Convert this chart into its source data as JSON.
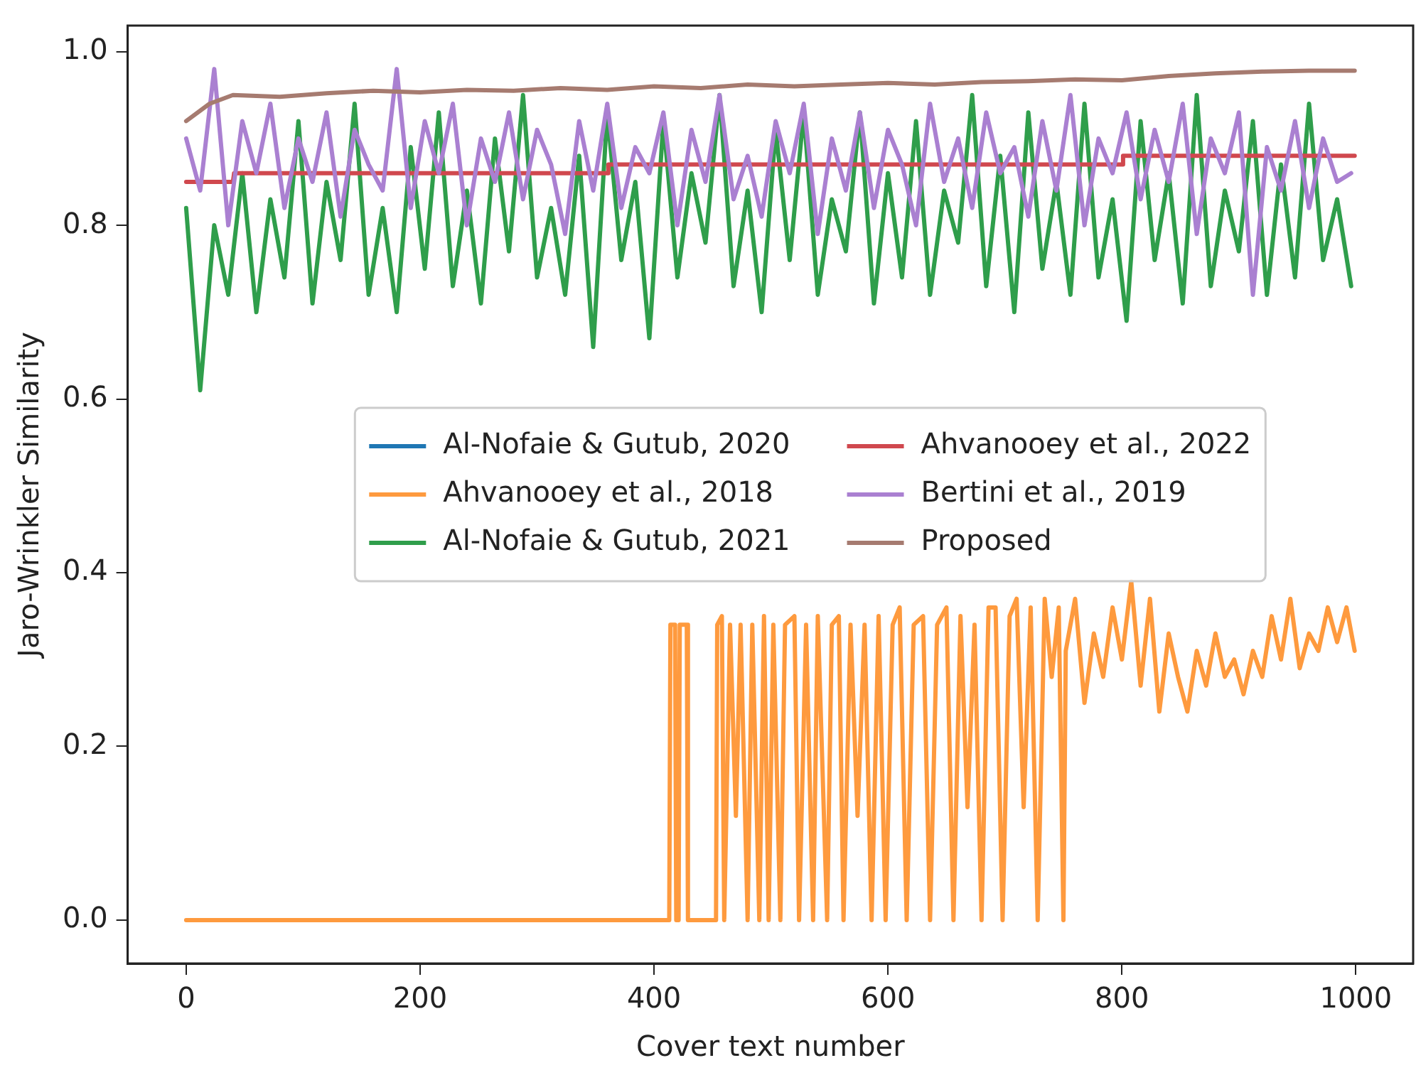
{
  "chart_data": {
    "type": "line",
    "xlabel": "Cover text number",
    "ylabel": "Jaro-Wrinkler Similarity",
    "xlim": [
      -50,
      1049
    ],
    "ylim": [
      -0.05,
      1.03
    ],
    "xticks": [
      0,
      200,
      400,
      600,
      800,
      1000
    ],
    "yticks": [
      {
        "value": 0,
        "label": "0.0"
      },
      {
        "value": 0.2,
        "label": "0.2"
      },
      {
        "value": 0.4,
        "label": "0.4"
      },
      {
        "value": 0.6,
        "label": "0.6"
      },
      {
        "value": 0.8,
        "label": "0.8"
      },
      {
        "value": 1,
        "label": "1.0"
      }
    ],
    "grid": false,
    "legend": "center",
    "marker": "none",
    "line_style": "solid",
    "series": [
      {
        "name": "Al-Nofaie & Gutub, 2020",
        "color": "#1f77b4"
      },
      {
        "name": "Ahvanooey et al., 2018",
        "color": "#fe9a3e",
        "x": [
          0,
          413,
          414,
          418,
          419,
          421,
          422,
          428,
          429,
          453,
          454,
          458,
          460,
          465,
          470,
          474,
          480,
          484,
          490,
          494,
          498,
          502,
          508,
          512,
          520,
          524,
          530,
          536,
          540,
          548,
          552,
          558,
          562,
          568,
          574,
          580,
          586,
          592,
          598,
          604,
          610,
          616,
          622,
          630,
          636,
          642,
          650,
          656,
          662,
          668,
          674,
          680,
          686,
          692,
          698,
          704,
          710,
          716,
          722,
          728,
          734,
          740,
          746,
          750,
          752,
          760,
          768,
          776,
          784,
          792,
          800,
          808,
          816,
          824,
          832,
          840,
          848,
          856,
          864,
          872,
          880,
          888,
          896,
          904,
          912,
          920,
          928,
          936,
          944,
          952,
          960,
          968,
          976,
          984,
          992,
          999
        ],
        "values": [
          0,
          0,
          0.34,
          0.34,
          0,
          0,
          0.34,
          0.34,
          0,
          0,
          0.34,
          0.35,
          0,
          0.34,
          0.12,
          0.34,
          0,
          0.34,
          0,
          0.35,
          0,
          0.34,
          0,
          0.34,
          0.35,
          0,
          0.34,
          0,
          0.35,
          0,
          0.34,
          0.35,
          0,
          0.34,
          0.12,
          0.34,
          0,
          0.35,
          0,
          0.34,
          0.36,
          0,
          0.34,
          0.35,
          0,
          0.34,
          0.36,
          0,
          0.35,
          0.13,
          0.34,
          0,
          0.36,
          0.36,
          0,
          0.35,
          0.37,
          0.13,
          0.36,
          0,
          0.37,
          0.28,
          0.36,
          0,
          0.31,
          0.37,
          0.25,
          0.33,
          0.28,
          0.36,
          0.3,
          0.39,
          0.27,
          0.37,
          0.24,
          0.33,
          0.28,
          0.24,
          0.31,
          0.27,
          0.33,
          0.28,
          0.3,
          0.26,
          0.31,
          0.28,
          0.35,
          0.3,
          0.37,
          0.29,
          0.33,
          0.31,
          0.36,
          0.32,
          0.36,
          0.31
        ]
      },
      {
        "name": "Al-Nofaie & Gutub, 2021",
        "color": "#2f9e4b",
        "x": [
          0,
          12,
          24,
          36,
          48,
          60,
          72,
          84,
          96,
          108,
          120,
          132,
          144,
          156,
          168,
          180,
          192,
          204,
          216,
          228,
          240,
          252,
          264,
          276,
          288,
          300,
          312,
          324,
          336,
          348,
          360,
          372,
          384,
          396,
          408,
          420,
          432,
          444,
          456,
          468,
          480,
          492,
          504,
          516,
          528,
          540,
          552,
          564,
          576,
          588,
          600,
          612,
          624,
          636,
          648,
          660,
          672,
          684,
          696,
          708,
          720,
          732,
          744,
          756,
          768,
          780,
          792,
          804,
          816,
          828,
          840,
          852,
          864,
          876,
          888,
          900,
          912,
          924,
          936,
          948,
          960,
          972,
          984,
          996
        ],
        "values": [
          0.82,
          0.61,
          0.8,
          0.72,
          0.86,
          0.7,
          0.83,
          0.74,
          0.92,
          0.71,
          0.85,
          0.76,
          0.94,
          0.72,
          0.82,
          0.7,
          0.89,
          0.75,
          0.93,
          0.73,
          0.84,
          0.71,
          0.9,
          0.77,
          0.95,
          0.74,
          0.82,
          0.72,
          0.88,
          0.66,
          0.93,
          0.76,
          0.85,
          0.67,
          0.92,
          0.74,
          0.86,
          0.78,
          0.95,
          0.73,
          0.84,
          0.7,
          0.91,
          0.76,
          0.93,
          0.72,
          0.83,
          0.77,
          0.93,
          0.71,
          0.86,
          0.74,
          0.92,
          0.72,
          0.84,
          0.78,
          0.95,
          0.73,
          0.88,
          0.7,
          0.93,
          0.75,
          0.85,
          0.72,
          0.94,
          0.74,
          0.83,
          0.69,
          0.92,
          0.76,
          0.86,
          0.71,
          0.95,
          0.73,
          0.84,
          0.77,
          0.92,
          0.72,
          0.87,
          0.74,
          0.94,
          0.76,
          0.83,
          0.73
        ]
      },
      {
        "name": "Ahvanooey et al., 2022",
        "color": "#d0484e",
        "x": [
          0,
          40,
          41,
          360,
          361,
          800,
          801,
          999
        ],
        "values": [
          0.85,
          0.85,
          0.86,
          0.86,
          0.87,
          0.87,
          0.88,
          0.88
        ]
      },
      {
        "name": "Bertini et al., 2019",
        "color": "#aa80d1",
        "x": [
          0,
          12,
          24,
          36,
          48,
          60,
          72,
          84,
          96,
          108,
          120,
          132,
          144,
          156,
          168,
          180,
          192,
          204,
          216,
          228,
          240,
          252,
          264,
          276,
          288,
          300,
          312,
          324,
          336,
          348,
          360,
          372,
          384,
          396,
          408,
          420,
          432,
          444,
          456,
          468,
          480,
          492,
          504,
          516,
          528,
          540,
          552,
          564,
          576,
          588,
          600,
          612,
          624,
          636,
          648,
          660,
          672,
          684,
          696,
          708,
          720,
          732,
          744,
          756,
          768,
          780,
          792,
          804,
          816,
          828,
          840,
          852,
          864,
          876,
          888,
          900,
          912,
          924,
          936,
          948,
          960,
          972,
          984,
          996
        ],
        "values": [
          0.9,
          0.84,
          0.98,
          0.8,
          0.92,
          0.86,
          0.94,
          0.82,
          0.9,
          0.85,
          0.93,
          0.81,
          0.91,
          0.87,
          0.84,
          0.98,
          0.82,
          0.92,
          0.86,
          0.94,
          0.8,
          0.9,
          0.85,
          0.93,
          0.83,
          0.91,
          0.87,
          0.79,
          0.92,
          0.84,
          0.94,
          0.82,
          0.89,
          0.86,
          0.93,
          0.8,
          0.91,
          0.85,
          0.95,
          0.83,
          0.88,
          0.81,
          0.92,
          0.86,
          0.94,
          0.79,
          0.9,
          0.84,
          0.93,
          0.82,
          0.91,
          0.87,
          0.8,
          0.94,
          0.85,
          0.9,
          0.82,
          0.93,
          0.86,
          0.89,
          0.81,
          0.92,
          0.84,
          0.95,
          0.8,
          0.9,
          0.86,
          0.93,
          0.83,
          0.91,
          0.85,
          0.94,
          0.79,
          0.9,
          0.86,
          0.93,
          0.72,
          0.89,
          0.84,
          0.92,
          0.82,
          0.9,
          0.85,
          0.86
        ]
      },
      {
        "name": "Proposed",
        "color": "#a67b70",
        "x": [
          0,
          20,
          40,
          80,
          120,
          160,
          200,
          240,
          280,
          320,
          360,
          400,
          440,
          480,
          520,
          560,
          600,
          640,
          680,
          720,
          760,
          800,
          840,
          880,
          920,
          960,
          999
        ],
        "values": [
          0.92,
          0.94,
          0.95,
          0.948,
          0.952,
          0.955,
          0.953,
          0.956,
          0.955,
          0.958,
          0.956,
          0.96,
          0.958,
          0.962,
          0.96,
          0.962,
          0.964,
          0.962,
          0.965,
          0.966,
          0.968,
          0.967,
          0.972,
          0.975,
          0.977,
          0.978,
          0.978
        ]
      }
    ]
  }
}
